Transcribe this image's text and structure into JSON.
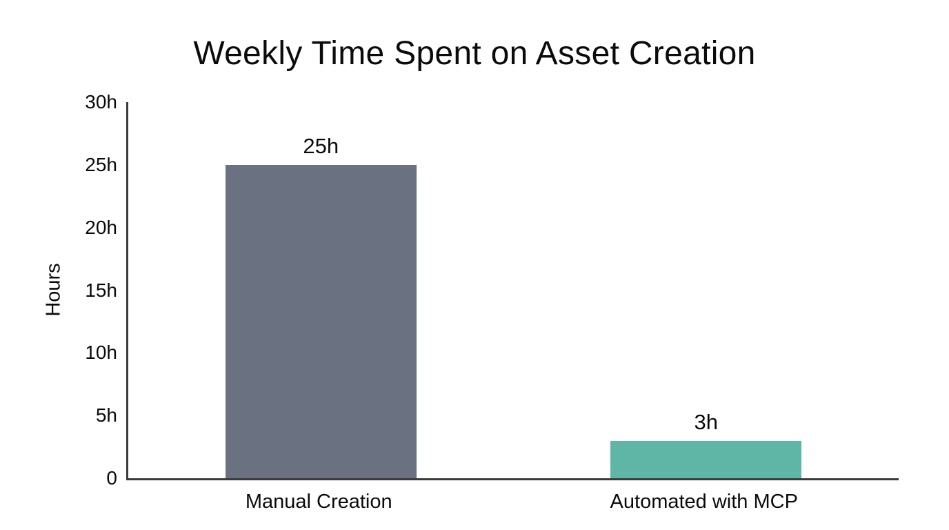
{
  "chart_data": {
    "type": "bar",
    "title": "Weekly Time Spent on Asset Creation",
    "xlabel": "",
    "ylabel": "Hours",
    "categories": [
      "Manual Creation",
      "Automated with MCP"
    ],
    "values": [
      25,
      3
    ],
    "value_labels": [
      "25h",
      "3h"
    ],
    "bar_colors": [
      "#6a7180",
      "#5fb6a7"
    ],
    "ylim": [
      0,
      30
    ],
    "y_ticks": [
      {
        "value": 0,
        "label": "0"
      },
      {
        "value": 5,
        "label": "5h"
      },
      {
        "value": 10,
        "label": "10h"
      },
      {
        "value": 15,
        "label": "15h"
      },
      {
        "value": 20,
        "label": "20h"
      },
      {
        "value": 25,
        "label": "25h"
      },
      {
        "value": 30,
        "label": "30h"
      }
    ],
    "grid": false,
    "legend": false,
    "background_color": "#ffffff",
    "axis_color": "#3a3a3a",
    "text_color": "#0b0b0b"
  }
}
